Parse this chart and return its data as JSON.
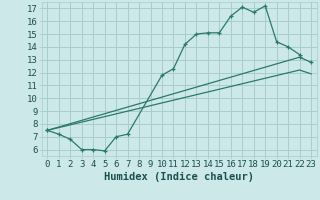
{
  "xlabel": "Humidex (Indice chaleur)",
  "background_color": "#cde8e8",
  "grid_color": "#a8cccc",
  "line_color": "#2a7a6a",
  "xlim": [
    -0.5,
    23.5
  ],
  "ylim": [
    5.5,
    17.5
  ],
  "xticks": [
    0,
    1,
    2,
    3,
    4,
    5,
    6,
    7,
    8,
    9,
    10,
    11,
    12,
    13,
    14,
    15,
    16,
    17,
    18,
    19,
    20,
    21,
    22,
    23
  ],
  "yticks": [
    6,
    7,
    8,
    9,
    10,
    11,
    12,
    13,
    14,
    15,
    16,
    17
  ],
  "curve1_x": [
    0,
    1,
    2,
    3,
    4,
    5,
    6,
    7,
    10,
    11,
    12,
    13,
    14,
    15,
    16,
    17,
    18,
    19,
    20,
    21,
    22
  ],
  "curve1_y": [
    7.5,
    7.2,
    6.8,
    6.0,
    6.0,
    5.9,
    7.0,
    7.2,
    11.8,
    12.3,
    14.2,
    15.0,
    15.1,
    15.1,
    16.4,
    17.1,
    16.7,
    17.2,
    14.4,
    14.0,
    13.4
  ],
  "line2_x": [
    0,
    22,
    23
  ],
  "line2_y": [
    7.5,
    13.2,
    12.8
  ],
  "line3_x": [
    0,
    22,
    23
  ],
  "line3_y": [
    7.5,
    12.2,
    11.9
  ],
  "tick_fontsize": 6.5,
  "xlabel_fontsize": 7.5
}
